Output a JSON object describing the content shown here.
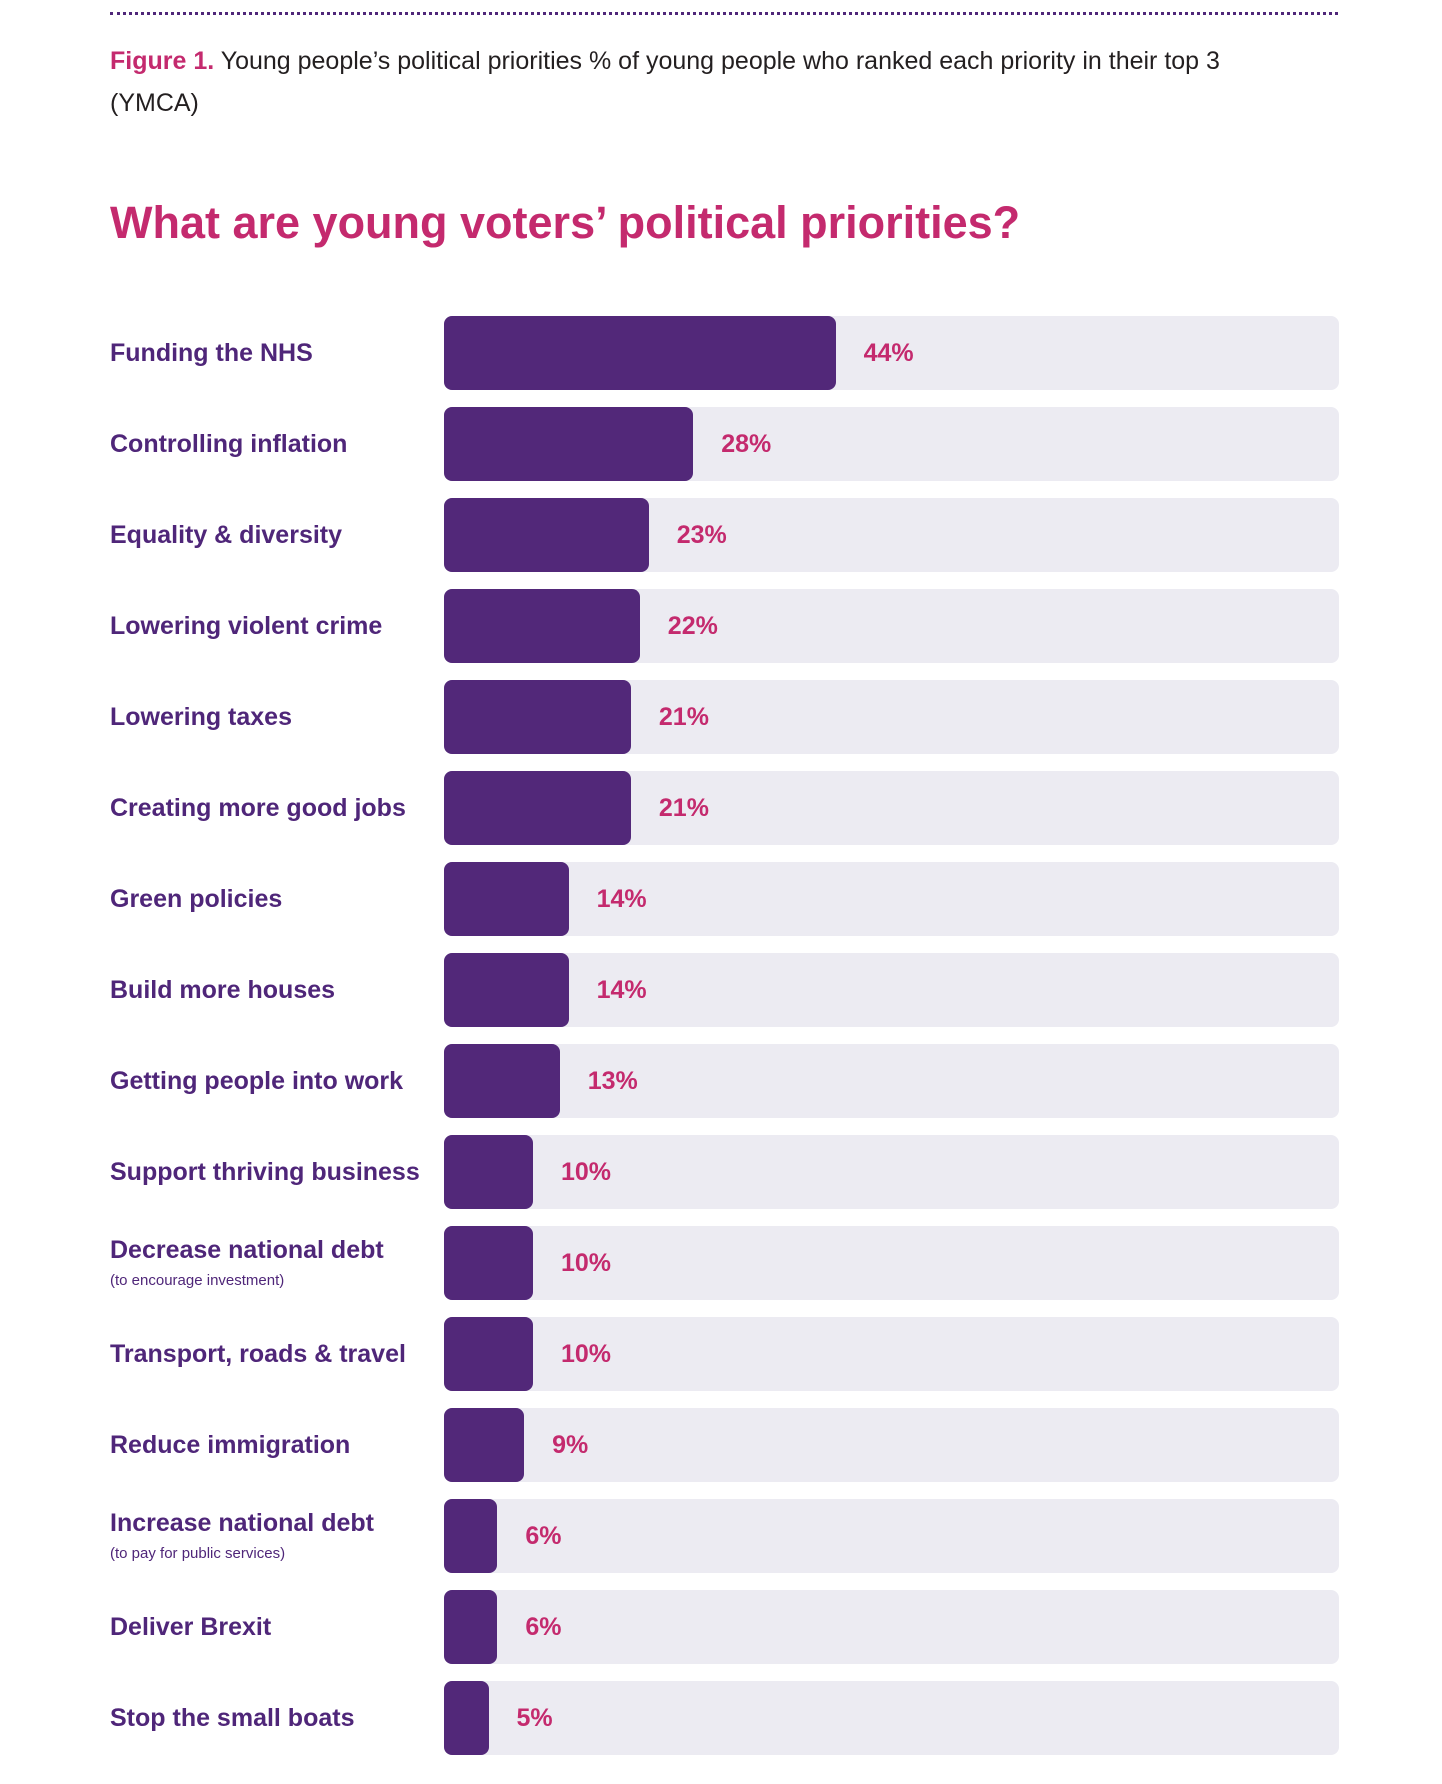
{
  "header": {
    "figure_label": "Figure 1.",
    "caption": "Young people’s political priorities % of young people who ranked each priority in their top 3 (YMCA)"
  },
  "chart_data": {
    "type": "bar",
    "orientation": "horizontal",
    "title": "What are young voters’ political priorities?",
    "value_suffix": "%",
    "xlim": [
      0,
      100
    ],
    "colors": {
      "bar": "#522879",
      "track": "#ecebf2",
      "value_label": "#c42a6e",
      "category_label": "#4f2679",
      "title": "#c42a6e"
    },
    "categories": [
      {
        "label": "Funding the NHS",
        "sublabel": "",
        "value": 44
      },
      {
        "label": "Controlling inflation",
        "sublabel": "",
        "value": 28
      },
      {
        "label": "Equality & diversity",
        "sublabel": "",
        "value": 23
      },
      {
        "label": "Lowering violent crime",
        "sublabel": "",
        "value": 22
      },
      {
        "label": "Lowering taxes",
        "sublabel": "",
        "value": 21
      },
      {
        "label": "Creating more good jobs",
        "sublabel": "",
        "value": 21
      },
      {
        "label": "Green policies",
        "sublabel": "",
        "value": 14
      },
      {
        "label": "Build more houses",
        "sublabel": "",
        "value": 14
      },
      {
        "label": "Getting people into work",
        "sublabel": "",
        "value": 13
      },
      {
        "label": "Support thriving business",
        "sublabel": "",
        "value": 10
      },
      {
        "label": "Decrease national debt",
        "sublabel": "(to encourage investment)",
        "value": 10
      },
      {
        "label": "Transport, roads & travel",
        "sublabel": "",
        "value": 10
      },
      {
        "label": "Reduce immigration",
        "sublabel": "",
        "value": 9
      },
      {
        "label": "Increase national debt",
        "sublabel": "(to pay for public services)",
        "value": 6
      },
      {
        "label": "Deliver Brexit",
        "sublabel": "",
        "value": 6
      },
      {
        "label": "Stop the small boats",
        "sublabel": "",
        "value": 5
      }
    ]
  }
}
